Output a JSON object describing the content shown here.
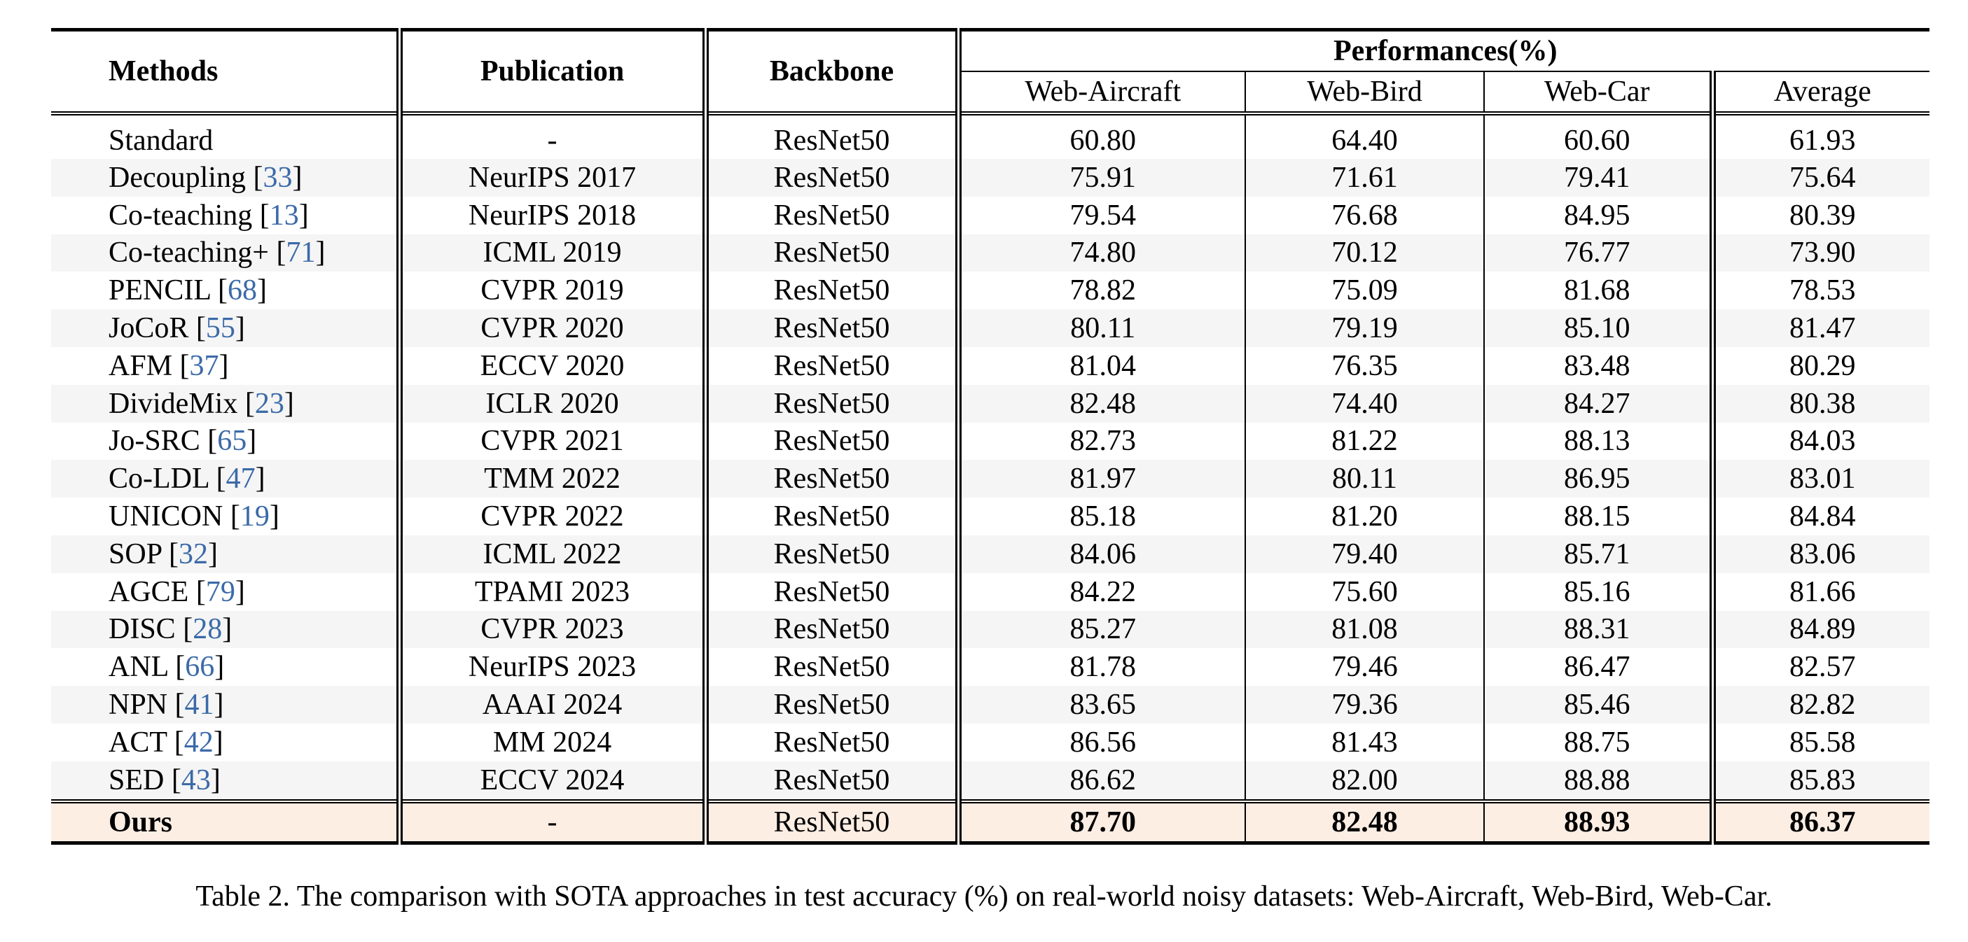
{
  "table": {
    "headers": {
      "methods": "Methods",
      "publication": "Publication",
      "backbone": "Backbone",
      "performances": "Performances(%)",
      "sub": [
        "Web-Aircraft",
        "Web-Bird",
        "Web-Car",
        "Average"
      ]
    },
    "rows": [
      {
        "method": "Standard",
        "ref": "",
        "publication": "-",
        "backbone": "ResNet50",
        "aircraft": "60.80",
        "bird": "64.40",
        "car": "60.60",
        "average": "61.93"
      },
      {
        "method": "Decoupling",
        "ref": "33",
        "publication": "NeurIPS 2017",
        "backbone": "ResNet50",
        "aircraft": "75.91",
        "bird": "71.61",
        "car": "79.41",
        "average": "75.64"
      },
      {
        "method": "Co-teaching",
        "ref": "13",
        "publication": "NeurIPS 2018",
        "backbone": "ResNet50",
        "aircraft": "79.54",
        "bird": "76.68",
        "car": "84.95",
        "average": "80.39"
      },
      {
        "method": "Co-teaching+",
        "ref": "71",
        "publication": "ICML 2019",
        "backbone": "ResNet50",
        "aircraft": "74.80",
        "bird": "70.12",
        "car": "76.77",
        "average": "73.90"
      },
      {
        "method": "PENCIL",
        "ref": "68",
        "publication": "CVPR 2019",
        "backbone": "ResNet50",
        "aircraft": "78.82",
        "bird": "75.09",
        "car": "81.68",
        "average": "78.53"
      },
      {
        "method": "JoCoR",
        "ref": "55",
        "publication": "CVPR 2020",
        "backbone": "ResNet50",
        "aircraft": "80.11",
        "bird": "79.19",
        "car": "85.10",
        "average": "81.47"
      },
      {
        "method": "AFM",
        "ref": "37",
        "publication": "ECCV 2020",
        "backbone": "ResNet50",
        "aircraft": "81.04",
        "bird": "76.35",
        "car": "83.48",
        "average": "80.29"
      },
      {
        "method": "DivideMix",
        "ref": "23",
        "publication": "ICLR 2020",
        "backbone": "ResNet50",
        "aircraft": "82.48",
        "bird": "74.40",
        "car": "84.27",
        "average": "80.38"
      },
      {
        "method": "Jo-SRC",
        "ref": "65",
        "publication": "CVPR 2021",
        "backbone": "ResNet50",
        "aircraft": "82.73",
        "bird": "81.22",
        "car": "88.13",
        "average": "84.03"
      },
      {
        "method": "Co-LDL",
        "ref": "47",
        "publication": "TMM 2022",
        "backbone": "ResNet50",
        "aircraft": "81.97",
        "bird": "80.11",
        "car": "86.95",
        "average": "83.01"
      },
      {
        "method": "UNICON",
        "ref": "19",
        "publication": "CVPR 2022",
        "backbone": "ResNet50",
        "aircraft": "85.18",
        "bird": "81.20",
        "car": "88.15",
        "average": "84.84"
      },
      {
        "method": "SOP",
        "ref": "32",
        "publication": "ICML 2022",
        "backbone": "ResNet50",
        "aircraft": "84.06",
        "bird": "79.40",
        "car": "85.71",
        "average": "83.06"
      },
      {
        "method": "AGCE",
        "ref": "79",
        "publication": "TPAMI 2023",
        "backbone": "ResNet50",
        "aircraft": "84.22",
        "bird": "75.60",
        "car": "85.16",
        "average": "81.66"
      },
      {
        "method": "DISC",
        "ref": "28",
        "publication": "CVPR 2023",
        "backbone": "ResNet50",
        "aircraft": "85.27",
        "bird": "81.08",
        "car": "88.31",
        "average": "84.89"
      },
      {
        "method": "ANL",
        "ref": "66",
        "publication": "NeurIPS 2023",
        "backbone": "ResNet50",
        "aircraft": "81.78",
        "bird": "79.46",
        "car": "86.47",
        "average": "82.57"
      },
      {
        "method": "NPN",
        "ref": "41",
        "publication": "AAAI 2024",
        "backbone": "ResNet50",
        "aircraft": "83.65",
        "bird": "79.36",
        "car": "85.46",
        "average": "82.82"
      },
      {
        "method": "ACT",
        "ref": "42",
        "publication": "MM 2024",
        "backbone": "ResNet50",
        "aircraft": "86.56",
        "bird": "81.43",
        "car": "88.75",
        "average": "85.58"
      },
      {
        "method": "SED",
        "ref": "43",
        "publication": "ECCV 2024",
        "backbone": "ResNet50",
        "aircraft": "86.62",
        "bird": "82.00",
        "car": "88.88",
        "average": "85.83"
      }
    ],
    "ours": {
      "method": "Ours",
      "publication": "-",
      "backbone": "ResNet50",
      "aircraft": "87.70",
      "bird": "82.48",
      "car": "88.93",
      "average": "86.37"
    }
  },
  "caption": "Table 2. The comparison with SOTA approaches in test accuracy (%) on real-world noisy datasets: Web-Aircraft, Web-Bird, Web-Car.",
  "colors": {
    "highlight_row": "#fdeee4",
    "reference_link": "#3b6aa8",
    "zebra": "#f5f5f5"
  }
}
